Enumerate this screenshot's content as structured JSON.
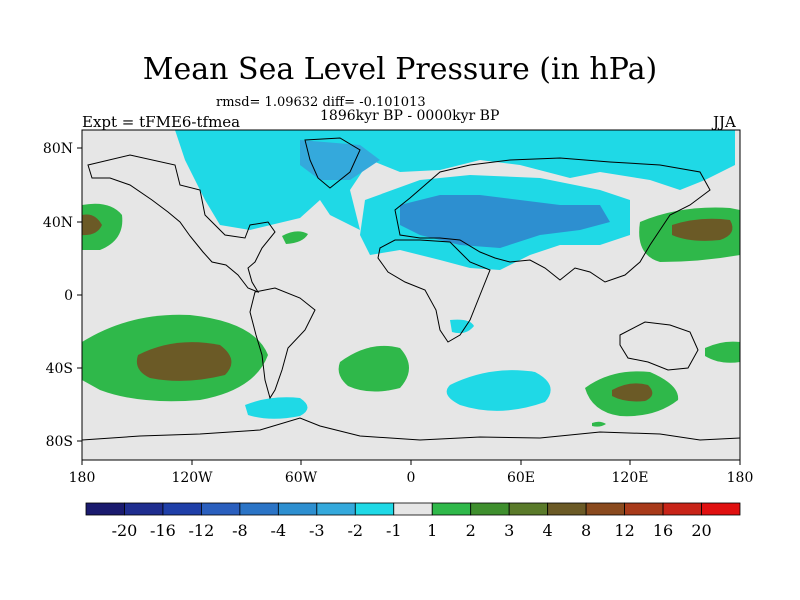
{
  "title": "Mean Sea Level Pressure (in hPa)",
  "stats_line": "rmsd= 1.09632  diff= -0.101013",
  "period": "1896kyr BP - 0000kyr BP",
  "experiment": "Expt = tFME6-tfmea",
  "season": "JJA",
  "lat_ticks": [
    "80N",
    "40N",
    "0",
    "40S",
    "80S"
  ],
  "lon_ticks": [
    "180",
    "120W",
    "60W",
    "0",
    "60E",
    "120E",
    "180"
  ],
  "colorbar": {
    "labels": [
      "-20",
      "-16",
      "-12",
      "-8",
      "-4",
      "-3",
      "-2",
      "-1",
      "1",
      "2",
      "3",
      "4",
      "8",
      "12",
      "16",
      "20"
    ],
    "colors": [
      "#1a1a6e",
      "#1f2d8f",
      "#1f3fa8",
      "#2a5fbe",
      "#2b74c6",
      "#2d8fd0",
      "#34a9dc",
      "#1fd9e6",
      "#e6e6e6",
      "#2fb84a",
      "#3f8f2e",
      "#5a7a2a",
      "#6b5a26",
      "#8a4a1e",
      "#a83a1a",
      "#c82418",
      "#e01010"
    ]
  },
  "palette": {
    "neutral": "#e6e6e6",
    "cyan": "#1fd9e6",
    "light_blue": "#34a9dc",
    "mid_blue": "#2d8fd0",
    "green": "#2fb84a",
    "dark_green": "#3f8f2e",
    "brown": "#6b5a26"
  }
}
